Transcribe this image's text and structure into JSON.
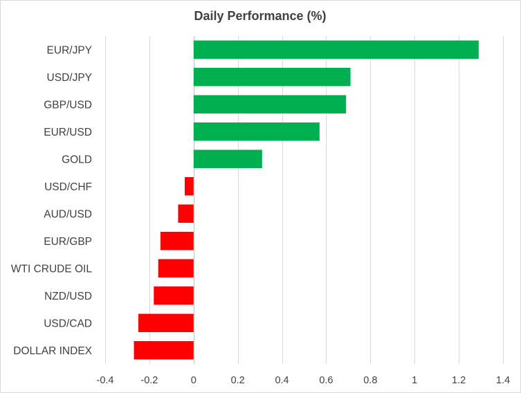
{
  "chart_data": {
    "type": "bar",
    "orientation": "horizontal",
    "title": "Daily Performance  (%)",
    "xlabel": "",
    "ylabel": "",
    "xlim": [
      -0.4,
      1.4
    ],
    "x_ticks": [
      "-0.4",
      "-0.2",
      "0",
      "0.2",
      "0.4",
      "0.6",
      "0.8",
      "1",
      "1.2",
      "1.4"
    ],
    "x_tick_values": [
      -0.4,
      -0.2,
      0,
      0.2,
      0.4,
      0.6,
      0.8,
      1.0,
      1.2,
      1.4
    ],
    "grid": "vertical",
    "legend": "none",
    "categories": [
      "EUR/JPY",
      "USD/JPY",
      "GBP/USD",
      "EUR/USD",
      "GOLD",
      "USD/CHF",
      "AUD/USD",
      "EUR/GBP",
      "WTI CRUDE OIL",
      "NZD/USD",
      "USD/CAD",
      "DOLLAR INDEX"
    ],
    "values": [
      1.29,
      0.71,
      0.69,
      0.57,
      0.31,
      -0.04,
      -0.07,
      -0.15,
      -0.16,
      -0.18,
      -0.25,
      -0.27
    ],
    "colors": {
      "positive": "#00b050",
      "negative": "#ff0000"
    }
  }
}
